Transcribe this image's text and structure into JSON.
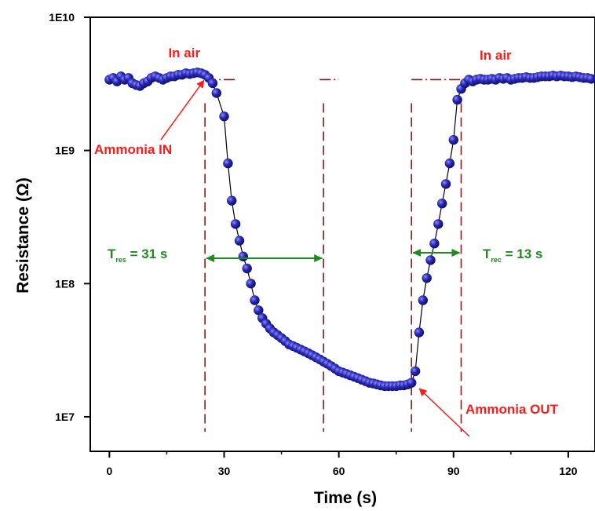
{
  "chart_data": {
    "type": "scatter",
    "xlabel": "Time (s)",
    "ylabel": "Resistance (Ω)",
    "x_ticks": [
      "0",
      "30",
      "60",
      "90",
      "120"
    ],
    "y_ticks": [
      "1E7",
      "1E8",
      "1E9",
      "1E10"
    ],
    "y_tick_values": [
      10000000,
      100000000,
      1000000000,
      10000000000
    ],
    "x_tick_values": [
      0,
      30,
      60,
      90,
      120
    ],
    "xlim": [
      -5,
      127
    ],
    "ylim": [
      5500000,
      10000000000
    ],
    "yscale": "log",
    "grid": false,
    "marker_color": "#1e1ea0",
    "series": [
      {
        "points": [
          [
            0,
            3400000000.0
          ],
          [
            1,
            3500000000.0
          ],
          [
            2,
            3300000000.0
          ],
          [
            3,
            3600000000.0
          ],
          [
            4,
            3400000000.0
          ],
          [
            5,
            3500000000.0
          ],
          [
            6,
            3200000000.0
          ],
          [
            7,
            3100000000.0
          ],
          [
            8,
            3050000000.0
          ],
          [
            9,
            3200000000.0
          ],
          [
            10,
            3300000000.0
          ],
          [
            11,
            3500000000.0
          ],
          [
            12,
            3600000000.0
          ],
          [
            13,
            3500000000.0
          ],
          [
            14,
            3400000000.0
          ],
          [
            15,
            3500000000.0
          ],
          [
            16,
            3600000000.0
          ],
          [
            17,
            3600000000.0
          ],
          [
            18,
            3700000000.0
          ],
          [
            19,
            3700000000.0
          ],
          [
            20,
            3800000000.0
          ],
          [
            21,
            3750000000.0
          ],
          [
            22,
            3800000000.0
          ],
          [
            23,
            3850000000.0
          ],
          [
            24,
            3800000000.0
          ],
          [
            25,
            3700000000.0
          ],
          [
            26,
            3500000000.0
          ],
          [
            27,
            3200000000.0
          ],
          [
            28,
            2700000000.0
          ],
          [
            30,
            1800000000.0
          ],
          [
            31,
            800000000.0
          ],
          [
            32,
            420000000.0
          ],
          [
            33,
            280000000.0
          ],
          [
            34,
            210000000.0
          ],
          [
            35,
            160000000.0
          ],
          [
            36,
            130000000.0
          ],
          [
            37,
            100000000.0
          ],
          [
            38,
            75000000.0
          ],
          [
            39,
            63000000.0
          ],
          [
            40,
            55000000.0
          ],
          [
            41,
            50000000.0
          ],
          [
            42,
            46000000.0
          ],
          [
            43,
            43000000.0
          ],
          [
            44,
            41000000.0
          ],
          [
            45,
            39000000.0
          ],
          [
            46,
            37000000.0
          ],
          [
            47,
            35000000.0
          ],
          [
            48,
            34000000.0
          ],
          [
            49,
            33000000.0
          ],
          [
            50,
            32000000.0
          ],
          [
            51,
            31000000.0
          ],
          [
            52,
            30000000.0
          ],
          [
            53,
            29000000.0
          ],
          [
            54,
            28000000.0
          ],
          [
            55,
            27000000.0
          ],
          [
            56,
            26000000.0
          ],
          [
            57,
            25000000.0
          ],
          [
            58,
            24000000.0
          ],
          [
            59,
            23000000.0
          ],
          [
            60,
            22000000.0
          ],
          [
            61,
            21500000.0
          ],
          [
            62,
            21000000.0
          ],
          [
            63,
            20500000.0
          ],
          [
            64,
            20000000.0
          ],
          [
            65,
            19500000.0
          ],
          [
            66,
            19000000.0
          ],
          [
            67,
            18500000.0
          ],
          [
            68,
            18000000.0
          ],
          [
            69,
            17800000.0
          ],
          [
            70,
            17500000.0
          ],
          [
            71,
            17200000.0
          ],
          [
            72,
            17000000.0
          ],
          [
            73,
            17000000.0
          ],
          [
            74,
            17000000.0
          ],
          [
            75,
            17000000.0
          ],
          [
            76,
            17200000.0
          ],
          [
            77,
            17200000.0
          ],
          [
            78,
            17500000.0
          ],
          [
            79,
            18000000.0
          ],
          [
            80,
            22000000.0
          ],
          [
            81,
            43000000.0
          ],
          [
            82,
            75000000.0
          ],
          [
            83,
            110000000.0
          ],
          [
            84,
            150000000.0
          ],
          [
            85,
            200000000.0
          ],
          [
            86,
            280000000.0
          ],
          [
            87,
            400000000.0
          ],
          [
            88,
            560000000.0
          ],
          [
            89,
            800000000.0
          ],
          [
            90,
            1200000000.0
          ],
          [
            91,
            2400000000.0
          ],
          [
            92,
            2900000000.0
          ],
          [
            93,
            3200000000.0
          ],
          [
            94,
            3400000000.0
          ],
          [
            95,
            3300000000.0
          ],
          [
            96,
            3400000000.0
          ],
          [
            97,
            3450000000.0
          ],
          [
            98,
            3400000000.0
          ],
          [
            99,
            3400000000.0
          ],
          [
            100,
            3450000000.0
          ],
          [
            101,
            3400000000.0
          ],
          [
            102,
            3500000000.0
          ],
          [
            103,
            3450000000.0
          ],
          [
            104,
            3500000000.0
          ],
          [
            105,
            3400000000.0
          ],
          [
            106,
            3450000000.0
          ],
          [
            107,
            3500000000.0
          ],
          [
            108,
            3500000000.0
          ],
          [
            109,
            3550000000.0
          ],
          [
            110,
            3500000000.0
          ],
          [
            111,
            3500000000.0
          ],
          [
            112,
            3550000000.0
          ],
          [
            113,
            3600000000.0
          ],
          [
            114,
            3600000000.0
          ],
          [
            115,
            3600000000.0
          ],
          [
            116,
            3650000000.0
          ],
          [
            117,
            3600000000.0
          ],
          [
            118,
            3650000000.0
          ],
          [
            119,
            3600000000.0
          ],
          [
            120,
            3600000000.0
          ],
          [
            121,
            3550000000.0
          ],
          [
            122,
            3600000000.0
          ],
          [
            123,
            3550000000.0
          ],
          [
            124,
            3500000000.0
          ],
          [
            125,
            3500000000.0
          ],
          [
            126,
            3450000000.0
          ],
          [
            127,
            3400000000.0
          ]
        ]
      }
    ],
    "reference_lines_x": [
      25,
      56,
      79,
      92
    ],
    "reference_color": "#8b1a1a",
    "baseline_level": 3400000000.0,
    "baseline_segments": [
      [
        25,
        33
      ],
      [
        55,
        60
      ],
      [
        79,
        92
      ]
    ],
    "annotations": {
      "in_air_left": {
        "text": "In air",
        "color": "#ff1a1a",
        "x": 20
      },
      "in_air_right": {
        "text": "In air",
        "color": "#ff1a1a",
        "x": 101
      },
      "ammonia_in": {
        "text": "Ammonia IN",
        "color": "#ff1a1a",
        "arrow_to": [
          25,
          3800000000.0
        ]
      },
      "ammonia_out": {
        "text": "Ammonia OUT",
        "color": "#ff1a1a",
        "arrow_to": [
          80,
          17000000.0
        ]
      },
      "t_res": {
        "prefix": "T",
        "sub": "res",
        "suffix": "= 31 s",
        "color": "#1f8a1f",
        "arrow_from": 25,
        "arrow_to": 56
      },
      "t_rec": {
        "prefix": "T",
        "sub": "rec",
        "suffix": "= 13 s",
        "color": "#1f8a1f",
        "arrow_from": 79,
        "arrow_to": 92
      }
    }
  }
}
